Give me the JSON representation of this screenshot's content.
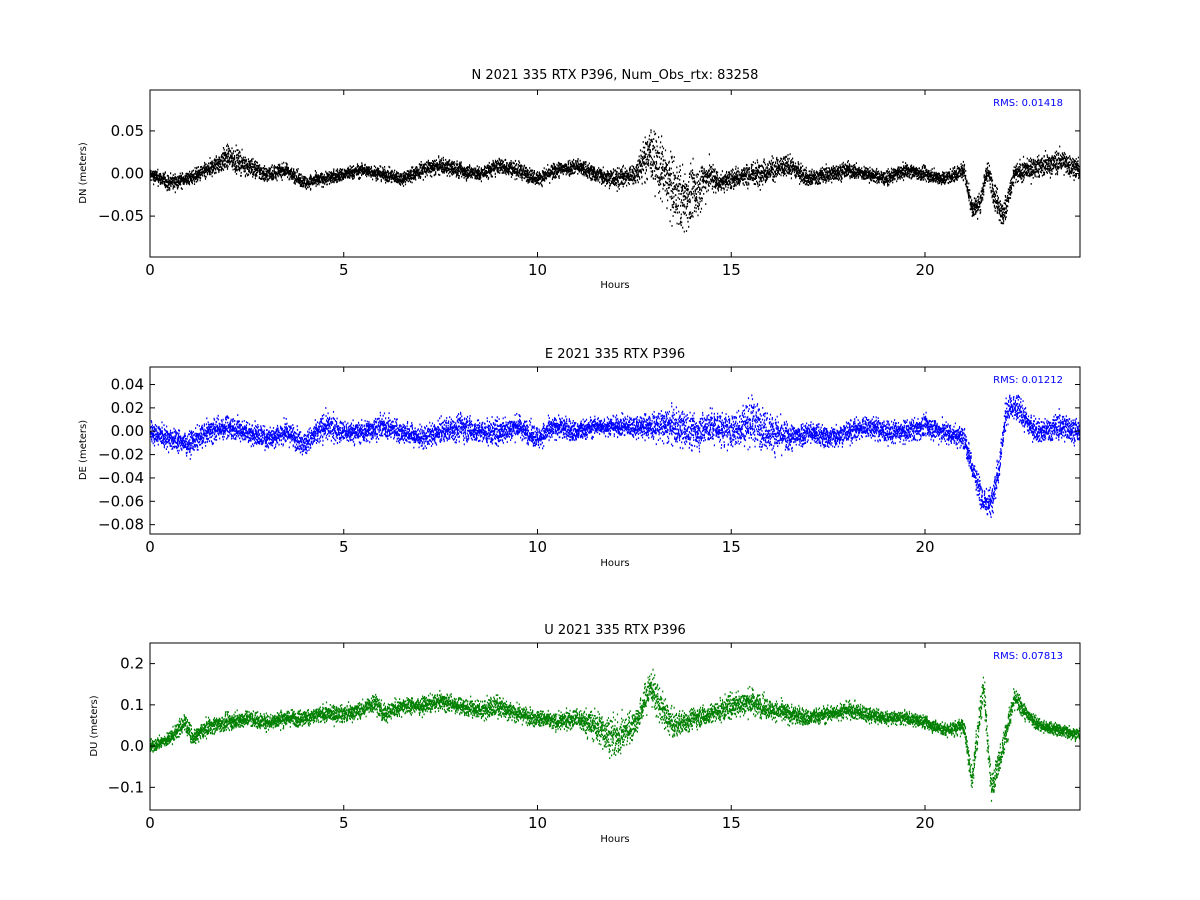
{
  "chart_data": [
    {
      "type": "scatter",
      "title": "N 2021 335 RTX  P396, Num_Obs_rtx: 83258",
      "xlabel": "Hours",
      "ylabel": "DN (meters)",
      "xlim": [
        0,
        24
      ],
      "ylim": [
        -0.098,
        0.098
      ],
      "xticks": [
        0,
        5,
        10,
        15,
        20
      ],
      "yticks": [
        0.05,
        0.0,
        -0.05
      ],
      "ytick_labels": [
        "0.05",
        "0.00",
        "−0.05"
      ],
      "rms_label": "RMS:  0.01418",
      "grid": false,
      "series": [
        {
          "color": "#000000",
          "x": [
            0,
            0.5,
            1.0,
            1.5,
            2.0,
            2.5,
            3.0,
            3.5,
            4.0,
            4.5,
            5.0,
            5.5,
            6.0,
            6.5,
            7.0,
            7.5,
            8.0,
            8.5,
            9.0,
            9.5,
            10.0,
            10.5,
            11.0,
            11.5,
            12.0,
            12.5,
            12.9,
            13.2,
            13.5,
            13.8,
            14.1,
            14.4,
            14.7,
            15.0,
            15.5,
            16.0,
            16.5,
            17.0,
            17.5,
            18.0,
            18.5,
            19.0,
            19.5,
            20.0,
            20.5,
            21.0,
            21.2,
            21.4,
            21.6,
            21.8,
            22.0,
            22.3,
            22.6,
            23.0,
            23.5,
            24.0
          ],
          "y": [
            0.0,
            -0.01,
            -0.005,
            0.005,
            0.02,
            0.01,
            0.0,
            0.005,
            -0.01,
            -0.005,
            0.0,
            0.005,
            0.0,
            -0.005,
            0.005,
            0.01,
            0.005,
            0.0,
            0.01,
            0.005,
            -0.005,
            0.005,
            0.01,
            0.0,
            -0.005,
            0.0,
            0.025,
            0.005,
            -0.02,
            -0.03,
            -0.02,
            0.0,
            -0.01,
            -0.005,
            0.0,
            0.005,
            0.01,
            -0.005,
            0.0,
            0.005,
            0.0,
            -0.005,
            0.005,
            0.0,
            -0.005,
            0.005,
            -0.04,
            -0.035,
            0.005,
            -0.025,
            -0.05,
            0.0,
            0.005,
            0.01,
            0.015,
            0.005
          ],
          "spread": [
            0.01,
            0.012,
            0.01,
            0.012,
            0.018,
            0.015,
            0.012,
            0.01,
            0.01,
            0.01,
            0.01,
            0.01,
            0.01,
            0.01,
            0.012,
            0.012,
            0.012,
            0.01,
            0.012,
            0.012,
            0.01,
            0.012,
            0.012,
            0.012,
            0.015,
            0.015,
            0.04,
            0.045,
            0.05,
            0.045,
            0.04,
            0.025,
            0.015,
            0.015,
            0.018,
            0.018,
            0.015,
            0.012,
            0.012,
            0.012,
            0.01,
            0.01,
            0.01,
            0.01,
            0.01,
            0.012,
            0.015,
            0.015,
            0.015,
            0.02,
            0.02,
            0.015,
            0.015,
            0.015,
            0.018,
            0.015
          ]
        }
      ]
    },
    {
      "type": "scatter",
      "title": "E 2021 335 RTX  P396",
      "xlabel": "Hours",
      "ylabel": "DE (meters)",
      "xlim": [
        0,
        24
      ],
      "ylim": [
        -0.088,
        0.055
      ],
      "xticks": [
        0,
        5,
        10,
        15,
        20
      ],
      "yticks": [
        0.04,
        0.02,
        0.0,
        -0.02,
        -0.04,
        -0.06,
        -0.08
      ],
      "ytick_labels": [
        "0.04",
        "0.02",
        "0.00",
        "−0.02",
        "−0.04",
        "−0.06",
        "−0.08"
      ],
      "rms_label": "RMS:  0.01212",
      "grid": false,
      "series": [
        {
          "color": "#0000ff",
          "x": [
            0,
            0.5,
            1.0,
            1.5,
            2.0,
            2.5,
            3.0,
            3.5,
            4.0,
            4.5,
            5.0,
            5.5,
            6.0,
            6.5,
            7.0,
            7.5,
            8.0,
            8.5,
            9.0,
            9.5,
            10.0,
            10.5,
            11.0,
            11.5,
            12.0,
            12.5,
            13.0,
            13.5,
            14.0,
            14.5,
            15.0,
            15.5,
            16.0,
            16.5,
            17.0,
            17.5,
            18.0,
            18.5,
            19.0,
            19.5,
            20.0,
            20.5,
            21.0,
            21.3,
            21.5,
            21.7,
            21.9,
            22.1,
            22.4,
            22.7,
            23.0,
            23.5,
            24.0
          ],
          "y": [
            0.0,
            -0.005,
            -0.01,
            0.0,
            0.005,
            0.0,
            -0.005,
            0.0,
            -0.01,
            0.005,
            0.0,
            0.0,
            0.005,
            0.0,
            -0.005,
            0.0,
            0.005,
            0.0,
            0.0,
            0.005,
            -0.005,
            0.005,
            0.0,
            0.005,
            0.005,
            0.005,
            0.005,
            0.005,
            0.0,
            0.005,
            0.0,
            0.01,
            0.0,
            -0.005,
            0.0,
            -0.005,
            0.0,
            0.005,
            0.0,
            0.0,
            0.005,
            0.0,
            -0.005,
            -0.04,
            -0.06,
            -0.06,
            -0.03,
            0.02,
            0.02,
            0.005,
            0.0,
            0.005,
            0.0
          ],
          "spread": [
            0.012,
            0.012,
            0.012,
            0.012,
            0.012,
            0.012,
            0.012,
            0.012,
            0.012,
            0.015,
            0.012,
            0.012,
            0.012,
            0.012,
            0.012,
            0.012,
            0.015,
            0.012,
            0.015,
            0.012,
            0.012,
            0.012,
            0.012,
            0.01,
            0.01,
            0.012,
            0.015,
            0.02,
            0.02,
            0.018,
            0.018,
            0.025,
            0.02,
            0.015,
            0.012,
            0.012,
            0.012,
            0.012,
            0.012,
            0.012,
            0.012,
            0.012,
            0.012,
            0.015,
            0.015,
            0.015,
            0.015,
            0.015,
            0.015,
            0.012,
            0.012,
            0.015,
            0.012
          ]
        }
      ]
    },
    {
      "type": "scatter",
      "title": "U 2021 335 RTX  P396",
      "xlabel": "Hours",
      "ylabel": "DU (meters)",
      "xlim": [
        0,
        24
      ],
      "ylim": [
        -0.155,
        0.25
      ],
      "xticks": [
        0,
        5,
        10,
        15,
        20
      ],
      "yticks": [
        0.2,
        0.1,
        0.0,
        -0.1
      ],
      "ytick_labels": [
        "0.2",
        "0.1",
        "0.0",
        "−0.1"
      ],
      "rms_label": "RMS:  0.07813",
      "grid": false,
      "series": [
        {
          "color": "#008000",
          "x": [
            0,
            0.5,
            0.9,
            1.1,
            1.5,
            2.0,
            2.5,
            3.0,
            3.5,
            4.0,
            4.5,
            5.0,
            5.5,
            5.8,
            6.0,
            6.5,
            7.0,
            7.5,
            8.0,
            8.5,
            9.0,
            9.5,
            10.0,
            10.5,
            11.0,
            11.5,
            12.0,
            12.3,
            12.6,
            12.9,
            13.2,
            13.5,
            14.0,
            14.5,
            15.0,
            15.5,
            16.0,
            16.5,
            17.0,
            17.5,
            18.0,
            18.5,
            19.0,
            19.5,
            20.0,
            20.5,
            21.0,
            21.2,
            21.5,
            21.7,
            22.0,
            22.3,
            22.6,
            23.0,
            23.5,
            24.0
          ],
          "y": [
            0.0,
            0.02,
            0.06,
            0.02,
            0.05,
            0.06,
            0.07,
            0.06,
            0.07,
            0.07,
            0.08,
            0.08,
            0.09,
            0.11,
            0.08,
            0.1,
            0.1,
            0.11,
            0.1,
            0.09,
            0.1,
            0.08,
            0.07,
            0.06,
            0.07,
            0.05,
            0.02,
            0.04,
            0.07,
            0.15,
            0.09,
            0.05,
            0.07,
            0.08,
            0.1,
            0.11,
            0.09,
            0.08,
            0.07,
            0.08,
            0.09,
            0.08,
            0.07,
            0.07,
            0.06,
            0.04,
            0.05,
            -0.08,
            0.15,
            -0.1,
            0.0,
            0.12,
            0.08,
            0.05,
            0.04,
            0.03
          ],
          "spread": [
            0.02,
            0.02,
            0.03,
            0.02,
            0.025,
            0.025,
            0.025,
            0.025,
            0.025,
            0.025,
            0.025,
            0.025,
            0.025,
            0.03,
            0.03,
            0.025,
            0.025,
            0.025,
            0.025,
            0.03,
            0.035,
            0.025,
            0.025,
            0.025,
            0.03,
            0.05,
            0.06,
            0.05,
            0.04,
            0.06,
            0.05,
            0.04,
            0.03,
            0.03,
            0.04,
            0.04,
            0.03,
            0.03,
            0.025,
            0.025,
            0.025,
            0.025,
            0.02,
            0.02,
            0.02,
            0.02,
            0.025,
            0.04,
            0.04,
            0.04,
            0.04,
            0.03,
            0.025,
            0.02,
            0.02,
            0.02
          ]
        }
      ]
    }
  ]
}
